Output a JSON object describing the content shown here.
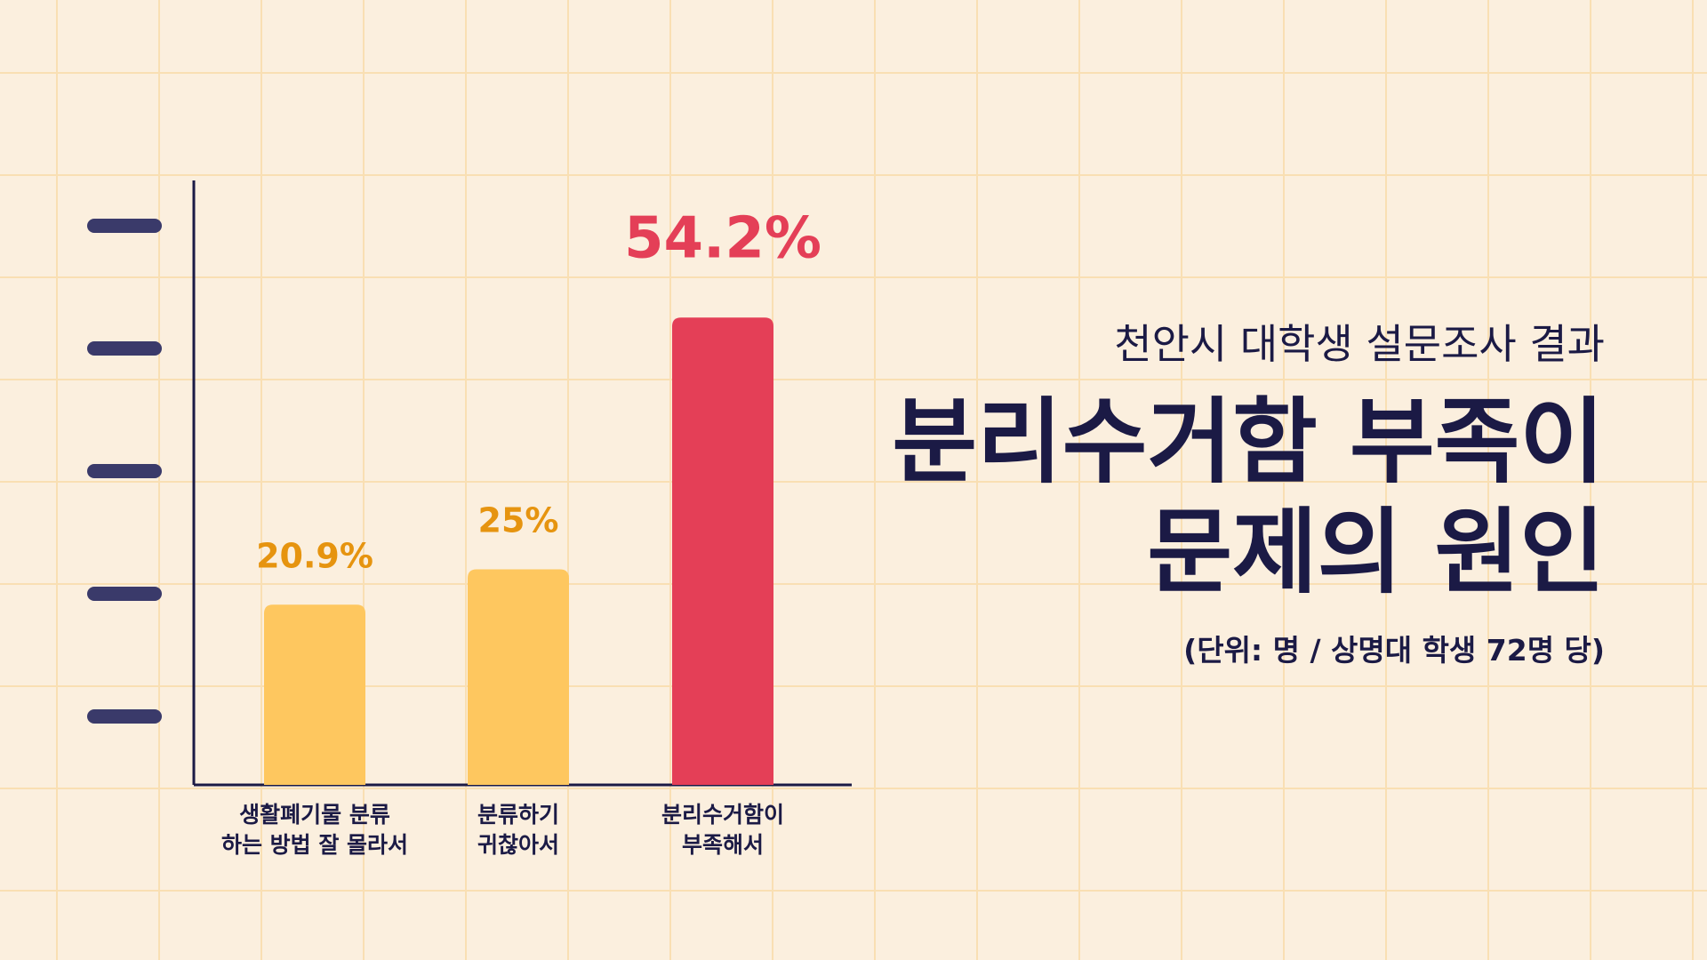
{
  "header": {
    "subtitle": "천안시 대학생 설문조사 결과",
    "headline_line1": "분리수거함 부족이",
    "headline_line2": "문제의 원인",
    "unit_note": "(단위: 명 / 상명대 학생 72명 당)"
  },
  "colors": {
    "background": "#fbefde",
    "grid": "#f9dfb3",
    "axis": "#1b1a45",
    "tick": "#3a3a6a",
    "bar_normal": "#fec75f",
    "bar_highlight": "#e43f57",
    "label_normal": "#e6940f",
    "label_highlight": "#e43f57",
    "text_dark": "#1b1a45"
  },
  "chart_data": {
    "type": "bar",
    "categories": [
      [
        "생활폐기물 분류",
        "하는 방법 잘 몰라서"
      ],
      [
        "분류하기",
        "귀찮아서"
      ],
      [
        "분리수거함이",
        "부족해서"
      ]
    ],
    "values": [
      20.9,
      25,
      54.2
    ],
    "data_labels": [
      "20.9%",
      "25%",
      "54.2%"
    ],
    "highlight_index": 2,
    "ylim": [
      0,
      70
    ],
    "grid": true,
    "title": "",
    "xlabel": "",
    "ylabel": ""
  }
}
